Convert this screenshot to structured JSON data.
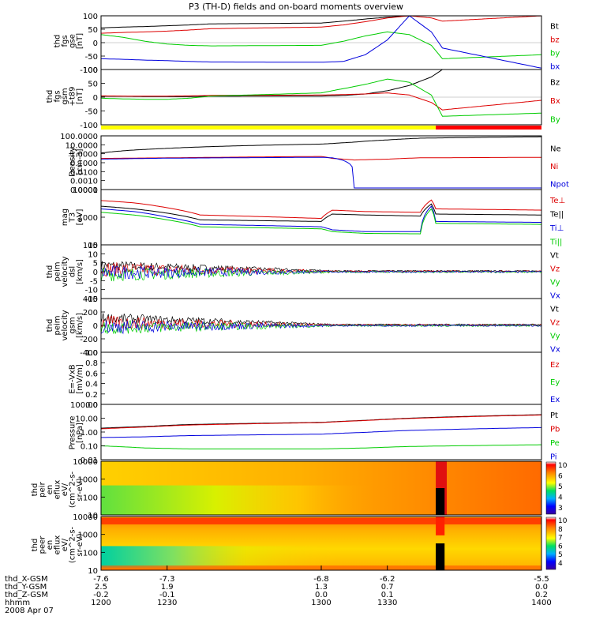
{
  "title": "P3 (TH-D) fields and on-board moments overview",
  "date_label": "2008 Apr 07",
  "time_axis": {
    "rows": [
      {
        "label": "thd_X-GSM",
        "values": [
          "-7.6",
          "-7.3",
          "-6.8",
          "-6.2",
          "-5.5"
        ]
      },
      {
        "label": "thd_Y-GSM",
        "values": [
          "2.5",
          "1.9",
          "1.3",
          "0.7",
          "0.0"
        ]
      },
      {
        "label": "thd_Z-GSM",
        "values": [
          "-0.2",
          "-0.1",
          "0.0",
          "0.1",
          "0.2"
        ]
      },
      {
        "label": "hhmm",
        "values": [
          "1200",
          "1230",
          "1300",
          "1330",
          "1400"
        ]
      }
    ]
  },
  "colors": {
    "black": "#000000",
    "red": "#dd0000",
    "green": "#00cc00",
    "blue": "#0000dd",
    "yellow": "#ffff00",
    "bar_red": "#ff0000"
  },
  "chart_data": [
    {
      "id": "fgs_gse",
      "type": "line",
      "ylabel": [
        "thd",
        "fgs",
        "gse",
        "[nT]"
      ],
      "yticks": [
        "100",
        "50",
        "0",
        "-50",
        "-100"
      ],
      "ylim": [
        -100,
        100
      ],
      "x": [
        1200,
        1210,
        1220,
        1230,
        1240,
        1250,
        1300,
        1310,
        1320,
        1330,
        1340,
        1350,
        1355,
        1400
      ],
      "series": [
        {
          "name": "Bt",
          "color": "#000000",
          "values": [
            55,
            58,
            60,
            63,
            66,
            70,
            73,
            80,
            88,
            95,
            100,
            100,
            100,
            100
          ]
        },
        {
          "name": "bz",
          "color": "#dd0000",
          "values": [
            35,
            38,
            40,
            43,
            47,
            52,
            58,
            66,
            78,
            92,
            100,
            92,
            80,
            100
          ]
        },
        {
          "name": "by",
          "color": "#00cc00",
          "values": [
            30,
            20,
            5,
            -5,
            -10,
            -12,
            -10,
            5,
            25,
            40,
            30,
            -10,
            -60,
            -45
          ]
        },
        {
          "name": "bx",
          "color": "#0000dd",
          "values": [
            -60,
            -62,
            -65,
            -67,
            -70,
            -72,
            -73,
            -70,
            -45,
            10,
            100,
            40,
            -20,
            -95
          ]
        }
      ]
    },
    {
      "id": "fgs_gsm",
      "type": "line",
      "ylabel": [
        "thd",
        "fgs",
        "gsm",
        "+t89",
        "[nT]"
      ],
      "yticks": [
        "100",
        "50",
        "0",
        "-50",
        "-100"
      ],
      "ylim": [
        -130,
        130
      ],
      "x": [
        1200,
        1210,
        1220,
        1230,
        1240,
        1250,
        1300,
        1310,
        1320,
        1330,
        1340,
        1350,
        1355,
        1400
      ],
      "series": [
        {
          "name": "Bz",
          "color": "#000000",
          "values": [
            4,
            4,
            3,
            3,
            3,
            4,
            5,
            8,
            15,
            30,
            55,
            95,
            130,
            130
          ]
        },
        {
          "name": "Bx",
          "color": "#dd0000",
          "values": [
            6,
            5,
            5,
            5,
            6,
            8,
            10,
            12,
            15,
            20,
            10,
            -25,
            -60,
            -15
          ]
        },
        {
          "name": "By",
          "color": "#00cc00",
          "values": [
            -5,
            -8,
            -10,
            -10,
            -5,
            5,
            20,
            40,
            60,
            85,
            70,
            10,
            -90,
            -75
          ]
        }
      ],
      "status_bar": {
        "segments": [
          {
            "to": 1352,
            "color": "#ffff00"
          },
          {
            "to": 1400,
            "color": "#ff0000"
          }
        ]
      }
    },
    {
      "id": "density",
      "type": "line",
      "yscale": "log",
      "ylabel": [
        "Density",
        "[cm-3]"
      ],
      "yticks": [
        "100.0000",
        "10.0000",
        "1.0000",
        "0.1000",
        "0.0100",
        "0.0010",
        "0.0001"
      ],
      "ylim": [
        0.0001,
        100
      ],
      "x": [
        1200,
        1230,
        1300,
        1305,
        1315,
        1330,
        1345,
        1400
      ],
      "series": [
        {
          "name": "Ne",
          "color": "#000000",
          "values": [
            1.2,
            4,
            12,
            14,
            20,
            35,
            55,
            80
          ]
        },
        {
          "name": "Ni",
          "color": "#dd0000",
          "values": [
            0.3,
            0.35,
            0.5,
            0.3,
            0.2,
            0.25,
            0.35,
            0.4
          ]
        },
        {
          "name": "Npot",
          "color": "#0000dd",
          "values": [
            0.25,
            0.32,
            0.4,
            0.35,
            0.00015,
            0.00015,
            0.00015,
            0.00015
          ]
        }
      ]
    },
    {
      "id": "temperature",
      "type": "line",
      "yscale": "log",
      "ylabel": [
        "mag",
        "T3",
        "[eV]"
      ],
      "yticks": [
        "10000",
        "1000",
        "100"
      ],
      "ylim": [
        100,
        10000
      ],
      "x": [
        1200,
        1215,
        1230,
        1245,
        1300,
        1305,
        1320,
        1345,
        1350,
        1352,
        1400
      ],
      "series": [
        {
          "name": "Te⊥",
          "color": "#dd0000",
          "values": [
            4000,
            3300,
            2200,
            1200,
            900,
            1800,
            1600,
            1500,
            4200,
            2000,
            1800
          ]
        },
        {
          "name": "Te||",
          "color": "#000000",
          "values": [
            2500,
            2000,
            1400,
            800,
            700,
            1300,
            1200,
            1100,
            3000,
            1300,
            1200
          ]
        },
        {
          "name": "Ti⊥",
          "color": "#0000dd",
          "values": [
            2000,
            1600,
            1000,
            550,
            450,
            350,
            300,
            300,
            2500,
            700,
            650
          ]
        },
        {
          "name": "Ti||",
          "color": "#00cc00",
          "values": [
            1500,
            1200,
            800,
            450,
            380,
            300,
            260,
            250,
            2000,
            600,
            550
          ]
        }
      ]
    },
    {
      "id": "velocity_dsl",
      "type": "line",
      "noisy": true,
      "ylabel": [
        "thd",
        "peim",
        "velocity",
        "dsl",
        "[km/s]"
      ],
      "yticks": [
        "15",
        "10",
        "5",
        "0",
        "-5",
        "-10",
        "-15"
      ],
      "ylim": [
        -15,
        15
      ],
      "series": [
        {
          "name": "Vt",
          "color": "#000000",
          "base": 3.5
        },
        {
          "name": "Vz",
          "color": "#dd0000",
          "base": 1.5
        },
        {
          "name": "Vy",
          "color": "#00cc00",
          "base": -1.5
        },
        {
          "name": "Vx",
          "color": "#0000dd",
          "base": -0.5
        }
      ]
    },
    {
      "id": "velocity_gsm",
      "type": "line",
      "noisy": true,
      "ylabel": [
        "thd",
        "peim",
        "velocity",
        "gsm",
        "[km/s]"
      ],
      "yticks": [
        "400",
        "200",
        "0",
        "-200",
        "-400"
      ],
      "ylim": [
        -400,
        400
      ],
      "series": [
        {
          "name": "Vt",
          "color": "#000000",
          "base": 110
        },
        {
          "name": "Vz",
          "color": "#dd0000",
          "base": 40
        },
        {
          "name": "Vy",
          "color": "#00cc00",
          "base": -30
        },
        {
          "name": "Vx",
          "color": "#0000dd",
          "base": -20
        }
      ]
    },
    {
      "id": "efield",
      "type": "line",
      "ylabel": [
        "E=-VxB",
        "[mV/m]"
      ],
      "yticks": [
        "1.0",
        "0.8",
        "0.6",
        "0.4",
        "0.2",
        "0.0"
      ],
      "ylim": [
        0,
        1
      ],
      "series": [
        {
          "name": "Ez",
          "color": "#dd0000",
          "values": []
        },
        {
          "name": "Ey",
          "color": "#00cc00",
          "values": []
        },
        {
          "name": "Ex",
          "color": "#0000dd",
          "values": []
        }
      ]
    },
    {
      "id": "pressure",
      "type": "line",
      "yscale": "log",
      "ylabel": [
        "Pressure",
        "[nPa]"
      ],
      "yticks": [
        "100.00",
        "10.00",
        "1.00",
        "0.10",
        "0.01"
      ],
      "ylim": [
        0.01,
        100
      ],
      "x": [
        1200,
        1220,
        1240,
        1300,
        1320,
        1340,
        1400
      ],
      "series": [
        {
          "name": "Pt",
          "color": "#000000",
          "values": [
            1.9,
            2.5,
            3.5,
            5,
            7,
            10,
            18
          ]
        },
        {
          "name": "Pb",
          "color": "#dd0000",
          "values": [
            1.7,
            2.3,
            3.2,
            4.8,
            6.8,
            9.5,
            17
          ]
        },
        {
          "name": "Pe",
          "color": "#00cc00",
          "values": [
            0.1,
            0.07,
            0.06,
            0.06,
            0.07,
            0.09,
            0.12
          ]
        },
        {
          "name": "Pi",
          "color": "#0000dd",
          "values": [
            0.4,
            0.45,
            0.55,
            0.7,
            0.95,
            1.3,
            2.1
          ]
        }
      ]
    },
    {
      "id": "ion_eflux",
      "type": "heatmap",
      "ylabel": [
        "thd",
        "peir",
        "en",
        "eflux",
        "eV/",
        "(cm^2-s-",
        "sr-eV)"
      ],
      "yticks": [
        "10000",
        "1000",
        "100",
        "10"
      ],
      "colorbar_ticks": [
        "10",
        "6",
        "5",
        "4",
        "3"
      ]
    },
    {
      "id": "electron_eflux",
      "type": "heatmap",
      "ylabel": [
        "thd",
        "peer",
        "en",
        "eflux",
        "eV/",
        "(cm^2-s-",
        "sr-eV)"
      ],
      "yticks": [
        "10000",
        "1000",
        "100",
        "10"
      ],
      "colorbar_ticks": [
        "10",
        "8",
        "7",
        "6",
        "5",
        "4"
      ]
    }
  ]
}
